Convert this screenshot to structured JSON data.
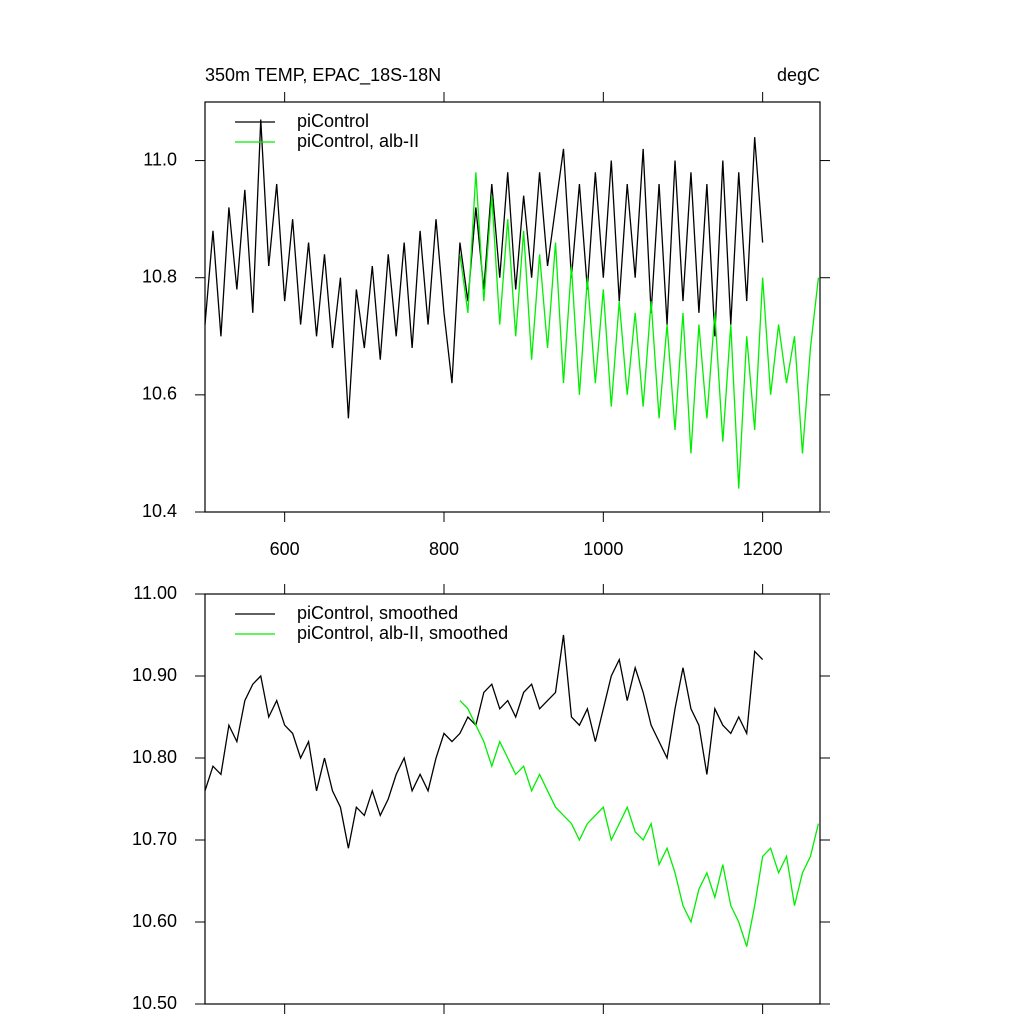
{
  "chart_data": [
    {
      "type": "line",
      "title": "350m TEMP, EPAC_18S-18N",
      "right_title": "degC",
      "xlim": [
        500,
        1272
      ],
      "xticks": [
        600,
        800,
        1000,
        1200
      ],
      "show_xtick_labels": true,
      "ylim": [
        10.4,
        11.1
      ],
      "yticks": [
        {
          "value": 10.4,
          "label": "10.4"
        },
        10.6,
        10.8,
        {
          "value": 11,
          "label": "11.0"
        }
      ],
      "legend": "upper left",
      "series": [
        {
          "name": "piControl",
          "color": "#000000",
          "x": [
            500,
            510,
            520,
            530,
            540,
            550,
            560,
            570,
            580,
            590,
            600,
            610,
            620,
            630,
            640,
            650,
            660,
            670,
            680,
            690,
            700,
            710,
            720,
            730,
            740,
            750,
            760,
            770,
            780,
            790,
            800,
            810,
            820,
            830,
            840,
            850,
            860,
            870,
            880,
            890,
            900,
            910,
            920,
            930,
            940,
            950,
            960,
            970,
            980,
            990,
            1000,
            1010,
            1020,
            1030,
            1040,
            1050,
            1060,
            1070,
            1080,
            1090,
            1100,
            1110,
            1120,
            1130,
            1140,
            1150,
            1160,
            1170,
            1180,
            1190,
            1200
          ],
          "values": [
            10.72,
            10.88,
            10.7,
            10.92,
            10.78,
            10.95,
            10.74,
            11.07,
            10.82,
            10.96,
            10.76,
            10.9,
            10.72,
            10.86,
            10.7,
            10.84,
            10.68,
            10.8,
            10.56,
            10.78,
            10.68,
            10.82,
            10.66,
            10.84,
            10.7,
            10.86,
            10.68,
            10.88,
            10.72,
            10.9,
            10.74,
            10.62,
            10.86,
            10.76,
            10.92,
            10.78,
            10.96,
            10.8,
            10.98,
            10.78,
            10.94,
            10.8,
            10.98,
            10.82,
            10.92,
            11.02,
            10.8,
            10.96,
            10.78,
            10.98,
            10.8,
            11.0,
            10.76,
            10.96,
            10.8,
            11.02,
            10.74,
            10.96,
            10.72,
            11.0,
            10.76,
            10.98,
            10.74,
            10.96,
            10.7,
            11.0,
            10.72,
            10.98,
            10.76,
            11.04,
            10.86
          ]
        },
        {
          "name": "piControl, alb-II",
          "color": "#00ee00",
          "x": [
            820,
            830,
            840,
            850,
            860,
            870,
            880,
            890,
            900,
            910,
            920,
            930,
            940,
            950,
            960,
            970,
            980,
            990,
            1000,
            1010,
            1020,
            1030,
            1040,
            1050,
            1060,
            1070,
            1080,
            1090,
            1100,
            1110,
            1120,
            1130,
            1140,
            1150,
            1160,
            1170,
            1180,
            1190,
            1200,
            1210,
            1220,
            1230,
            1240,
            1250,
            1260,
            1270
          ],
          "values": [
            10.84,
            10.74,
            10.98,
            10.76,
            10.94,
            10.72,
            10.9,
            10.7,
            10.88,
            10.66,
            10.84,
            10.68,
            10.86,
            10.62,
            10.82,
            10.6,
            10.8,
            10.62,
            10.78,
            10.58,
            10.76,
            10.6,
            10.74,
            10.58,
            10.76,
            10.56,
            10.72,
            10.54,
            10.74,
            10.5,
            10.72,
            10.56,
            10.74,
            10.52,
            10.72,
            10.44,
            10.7,
            10.54,
            10.8,
            10.6,
            10.72,
            10.62,
            10.7,
            10.5,
            10.68,
            10.8
          ]
        }
      ]
    },
    {
      "type": "line",
      "xlim": [
        500,
        1272
      ],
      "xticks": [
        600,
        800,
        1000,
        1200
      ],
      "show_xtick_labels": false,
      "ylim": [
        10.5,
        11.0
      ],
      "yticks": [
        {
          "value": 10.5,
          "label": "10.50"
        },
        {
          "value": 10.6,
          "label": "10.60"
        },
        {
          "value": 10.7,
          "label": "10.70"
        },
        {
          "value": 10.8,
          "label": "10.80"
        },
        {
          "value": 10.9,
          "label": "10.90"
        },
        {
          "value": 11,
          "label": "11.00"
        }
      ],
      "legend": "upper left",
      "series": [
        {
          "name": "piControl, smoothed",
          "color": "#000000",
          "x": [
            500,
            510,
            520,
            530,
            540,
            550,
            560,
            570,
            580,
            590,
            600,
            610,
            620,
            630,
            640,
            650,
            660,
            670,
            680,
            690,
            700,
            710,
            720,
            730,
            740,
            750,
            760,
            770,
            780,
            790,
            800,
            810,
            820,
            830,
            840,
            850,
            860,
            870,
            880,
            890,
            900,
            910,
            920,
            930,
            940,
            950,
            960,
            970,
            980,
            990,
            1000,
            1010,
            1020,
            1030,
            1040,
            1050,
            1060,
            1070,
            1080,
            1090,
            1100,
            1110,
            1120,
            1130,
            1140,
            1150,
            1160,
            1170,
            1180,
            1190,
            1200
          ],
          "values": [
            10.76,
            10.79,
            10.78,
            10.84,
            10.82,
            10.87,
            10.89,
            10.9,
            10.85,
            10.87,
            10.84,
            10.83,
            10.8,
            10.82,
            10.76,
            10.8,
            10.76,
            10.74,
            10.69,
            10.74,
            10.73,
            10.76,
            10.73,
            10.75,
            10.78,
            10.8,
            10.76,
            10.78,
            10.76,
            10.8,
            10.83,
            10.82,
            10.83,
            10.85,
            10.84,
            10.88,
            10.89,
            10.86,
            10.87,
            10.85,
            10.88,
            10.89,
            10.86,
            10.87,
            10.88,
            10.95,
            10.85,
            10.84,
            10.86,
            10.82,
            10.86,
            10.9,
            10.92,
            10.87,
            10.91,
            10.88,
            10.84,
            10.82,
            10.8,
            10.86,
            10.91,
            10.86,
            10.84,
            10.78,
            10.86,
            10.84,
            10.83,
            10.85,
            10.83,
            10.93,
            10.92
          ]
        },
        {
          "name": "piControl, alb-II, smoothed",
          "color": "#00ee00",
          "x": [
            820,
            830,
            840,
            850,
            860,
            870,
            880,
            890,
            900,
            910,
            920,
            930,
            940,
            950,
            960,
            970,
            980,
            990,
            1000,
            1010,
            1020,
            1030,
            1040,
            1050,
            1060,
            1070,
            1080,
            1090,
            1100,
            1110,
            1120,
            1130,
            1140,
            1150,
            1160,
            1170,
            1180,
            1190,
            1200,
            1210,
            1220,
            1230,
            1240,
            1250,
            1260,
            1270
          ],
          "values": [
            10.87,
            10.86,
            10.84,
            10.82,
            10.79,
            10.82,
            10.8,
            10.78,
            10.79,
            10.76,
            10.78,
            10.76,
            10.74,
            10.73,
            10.72,
            10.7,
            10.72,
            10.73,
            10.74,
            10.7,
            10.72,
            10.74,
            10.71,
            10.7,
            10.72,
            10.67,
            10.69,
            10.66,
            10.62,
            10.6,
            10.64,
            10.66,
            10.63,
            10.67,
            10.62,
            10.6,
            10.57,
            10.62,
            10.68,
            10.69,
            10.66,
            10.68,
            10.62,
            10.66,
            10.68,
            10.72
          ]
        }
      ]
    }
  ]
}
